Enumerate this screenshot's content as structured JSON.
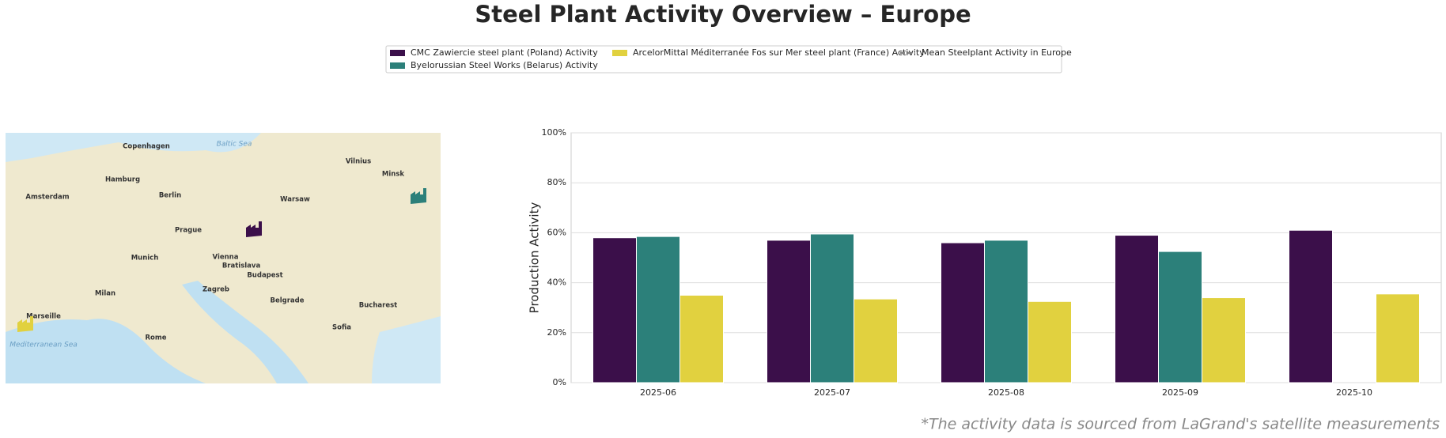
{
  "chart_data": {
    "type": "bar",
    "title": "Steel Plant Activity Overview – Europe",
    "ylabel": "Production Activity",
    "footnote": "*The activity data is sourced from LaGrand's satellite measurements",
    "categories": [
      "2025-06",
      "2025-07",
      "2025-08",
      "2025-09",
      "2025-10"
    ],
    "series": [
      {
        "name": "CMC Zawiercie steel plant (Poland) Activity",
        "color": "#3b0f4a",
        "values": [
          58,
          57,
          56,
          59,
          61
        ]
      },
      {
        "name": "Byelorussian Steel Works (Belarus) Activity",
        "color": "#2c807a",
        "values": [
          58.5,
          59.5,
          57,
          52.5,
          null
        ]
      },
      {
        "name": "ArcelorMittal Méditerranée Fos sur Mer steel plant (France) Activity",
        "color": "#e1d13f",
        "values": [
          35,
          33.5,
          32.5,
          34,
          35.5
        ]
      }
    ],
    "mean_line": {
      "name": "Mean Steelplant Activity in Europe",
      "color": "#808080"
    },
    "ylim": [
      0,
      100
    ],
    "yticks": [
      {
        "value": 0,
        "label": "0%"
      },
      {
        "value": 20,
        "label": "20%"
      },
      {
        "value": 40,
        "label": "40%"
      },
      {
        "value": 60,
        "label": "60%"
      },
      {
        "value": 80,
        "label": "80%"
      },
      {
        "value": 100,
        "label": "100%"
      }
    ],
    "grid": true
  },
  "map": {
    "labels": [
      "Copenhagen",
      "Hamburg",
      "Berlin",
      "Warsaw",
      "Vilnius",
      "Minsk",
      "Amsterdam",
      "Prague",
      "Vienna",
      "Bratislava",
      "Budapest",
      "Munich",
      "Milan",
      "Zagreb",
      "Belgrade",
      "Bucharest",
      "Rome",
      "Sofia",
      "Marseille",
      "Baltic Sea",
      "Mediterranean Sea"
    ]
  }
}
